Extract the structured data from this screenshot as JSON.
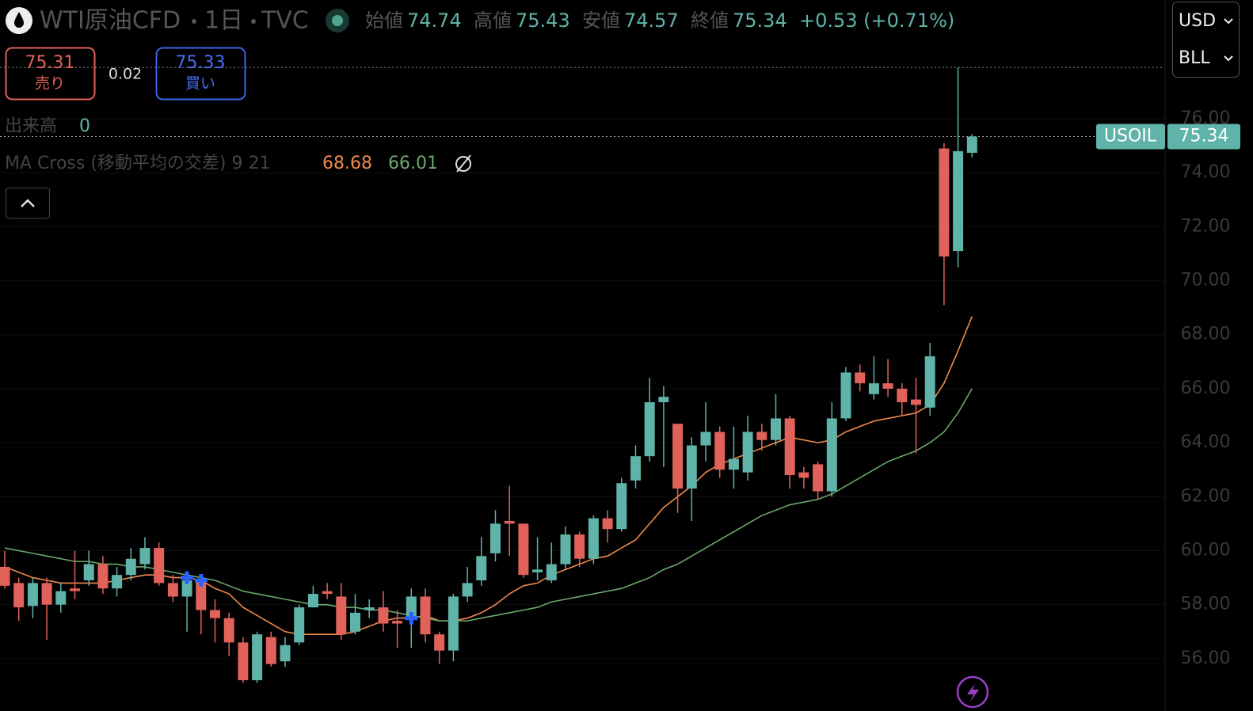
{
  "header": {
    "symbol": "WTI原油CFD",
    "interval": "1日",
    "source": "TVC",
    "open_label": "始値",
    "high_label": "高値",
    "low_label": "安値",
    "close_label": "終値",
    "change": "+0.53 (+0.71%)"
  },
  "trade": {
    "sell_price": 75.31,
    "sell_label": "売り",
    "spread": 0.02,
    "buy_price": 75.33,
    "buy_label": "買い"
  },
  "volume": {
    "label": "出来高",
    "value": 0
  },
  "indicator": {
    "label": "MA Cross (移動平均の交差) 9 21"
  },
  "selectors": {
    "currency": "USD",
    "unit": "BLL"
  },
  "symbol_tag": "USOIL",
  "chart_data": {
    "type": "candlestick",
    "categories": [
      null,
      null,
      null,
      null,
      null,
      null,
      null,
      null,
      null,
      null,
      null,
      null,
      null,
      null,
      null,
      null,
      null,
      null,
      null,
      null,
      null,
      null,
      null,
      null,
      null,
      null,
      null,
      null,
      null,
      null,
      null,
      null,
      null,
      null,
      null,
      null,
      null,
      null,
      null,
      null,
      null,
      null,
      null,
      null,
      null,
      null,
      null,
      null,
      null,
      null,
      null,
      null,
      null,
      null,
      null,
      null,
      null,
      null,
      null,
      null,
      null,
      null,
      null,
      null,
      null,
      null,
      null,
      null,
      null,
      null
    ],
    "open": [
      59.4,
      58.8,
      57.95,
      58.8,
      58.0,
      58.6,
      58.9,
      59.5,
      58.6,
      59.1,
      59.5,
      60.1,
      58.8,
      58.3,
      58.9,
      57.8,
      57.5,
      56.6,
      55.2,
      56.8,
      55.9,
      56.6,
      57.9,
      58.5,
      58.3,
      57.0,
      57.8,
      57.9,
      57.4,
      57.5,
      58.3,
      56.9,
      56.3,
      58.3,
      58.9,
      59.9,
      61.1,
      61.0,
      59.2,
      58.9,
      59.5,
      60.6,
      59.7,
      61.2,
      60.8,
      62.6,
      63.5,
      65.5,
      64.7,
      62.3,
      63.9,
      64.4,
      63.0,
      62.9,
      64.4,
      64.1,
      64.9,
      62.9,
      63.2,
      62.2,
      64.9,
      66.6,
      65.8,
      66.2,
      66.0,
      65.6,
      65.3,
      74.9,
      71.1,
      74.74
    ],
    "high": [
      60.0,
      59.0,
      59.0,
      59.0,
      58.8,
      60.0,
      60.0,
      59.8,
      59.4,
      60.1,
      60.5,
      60.3,
      59.1,
      59.2,
      59.1,
      58.2,
      57.7,
      56.8,
      57.0,
      57.0,
      56.8,
      58.0,
      58.7,
      58.8,
      58.8,
      58.4,
      58.2,
      58.5,
      57.8,
      58.6,
      58.6,
      57.0,
      58.4,
      59.4,
      60.5,
      61.5,
      62.4,
      61.0,
      60.5,
      60.3,
      60.9,
      60.7,
      61.3,
      61.5,
      62.7,
      63.9,
      66.4,
      66.1,
      64.7,
      64.2,
      65.5,
      64.6,
      64.6,
      65.0,
      64.7,
      65.8,
      65.0,
      63.1,
      63.3,
      65.5,
      66.8,
      66.9,
      67.2,
      67.1,
      66.2,
      66.4,
      67.7,
      75.1,
      77.9,
      75.43
    ],
    "low": [
      58.6,
      57.4,
      57.5,
      56.7,
      57.7,
      58.2,
      58.7,
      58.4,
      58.3,
      58.9,
      59.3,
      58.7,
      58.1,
      57.0,
      56.9,
      56.6,
      56.1,
      55.1,
      55.1,
      55.7,
      55.7,
      56.5,
      57.9,
      58.2,
      56.7,
      56.9,
      57.5,
      57.0,
      56.4,
      56.4,
      56.6,
      55.8,
      55.9,
      58.1,
      58.7,
      59.6,
      59.8,
      59.0,
      58.9,
      58.8,
      59.3,
      59.4,
      59.5,
      60.3,
      60.7,
      62.3,
      63.3,
      63.1,
      61.4,
      61.1,
      63.3,
      62.7,
      62.3,
      62.6,
      63.7,
      63.9,
      62.3,
      62.3,
      61.9,
      62.0,
      64.8,
      65.9,
      65.6,
      65.7,
      65.0,
      63.6,
      65.0,
      69.1,
      70.5,
      74.57
    ],
    "close": [
      58.7,
      57.9,
      58.8,
      58.0,
      58.5,
      58.5,
      59.5,
      58.6,
      59.1,
      59.7,
      60.1,
      58.8,
      58.3,
      58.9,
      57.8,
      57.5,
      56.6,
      55.2,
      56.9,
      55.8,
      56.5,
      57.9,
      58.4,
      58.4,
      56.9,
      57.7,
      57.9,
      57.3,
      57.3,
      58.3,
      56.9,
      56.3,
      58.3,
      58.8,
      59.8,
      61.0,
      61.0,
      59.1,
      59.3,
      59.5,
      60.6,
      59.7,
      61.2,
      60.8,
      62.5,
      63.5,
      65.5,
      65.7,
      62.3,
      63.9,
      64.4,
      63.0,
      63.4,
      64.4,
      64.1,
      64.9,
      62.8,
      62.7,
      62.2,
      64.9,
      66.6,
      66.2,
      66.2,
      66.0,
      65.5,
      65.4,
      67.2,
      70.9,
      74.8,
      75.34
    ],
    "up_color": "#5fb3a8",
    "down_color": "#e0625a",
    "series": [
      {
        "color": "#f08a4b",
        "values": [
          59.4,
          59.2,
          59.0,
          58.9,
          58.8,
          58.8,
          58.8,
          58.8,
          58.9,
          59.0,
          59.1,
          59.1,
          59.0,
          59.0,
          58.9,
          58.6,
          58.4,
          57.9,
          57.6,
          57.3,
          57.0,
          56.9,
          56.9,
          56.9,
          56.9,
          57.0,
          57.2,
          57.4,
          57.5,
          57.5,
          57.6,
          57.4,
          57.4,
          57.5,
          57.7,
          58.0,
          58.4,
          58.7,
          58.8,
          59.1,
          59.3,
          59.5,
          59.7,
          59.8,
          60.1,
          60.4,
          61.0,
          61.6,
          62.0,
          62.4,
          62.9,
          63.2,
          63.4,
          63.6,
          63.8,
          64.0,
          64.2,
          64.1,
          64.0,
          64.1,
          64.4,
          64.6,
          64.8,
          64.9,
          65.0,
          65.1,
          65.4,
          66.2,
          67.4,
          68.68
        ]
      },
      {
        "color": "#6da86a",
        "values": [
          60.1,
          60.0,
          59.9,
          59.8,
          59.7,
          59.6,
          59.6,
          59.5,
          59.5,
          59.4,
          59.4,
          59.3,
          59.2,
          59.1,
          59.0,
          58.9,
          58.7,
          58.5,
          58.4,
          58.3,
          58.2,
          58.1,
          58.0,
          58.0,
          57.9,
          57.9,
          57.8,
          57.8,
          57.7,
          57.6,
          57.5,
          57.4,
          57.4,
          57.4,
          57.5,
          57.6,
          57.7,
          57.8,
          57.9,
          58.1,
          58.2,
          58.3,
          58.4,
          58.5,
          58.6,
          58.8,
          59.0,
          59.3,
          59.5,
          59.8,
          60.1,
          60.4,
          60.7,
          61.0,
          61.3,
          61.5,
          61.7,
          61.8,
          61.9,
          62.1,
          62.4,
          62.7,
          63.0,
          63.3,
          63.5,
          63.7,
          64.0,
          64.4,
          65.1,
          66.01
        ]
      }
    ],
    "cross_color": "#2962ff",
    "ylim": [
      54.06,
      80.4
    ],
    "yticks": [
      {
        "value": 56,
        "label": "56.00"
      },
      {
        "value": 58,
        "label": "58.00"
      },
      {
        "value": 60,
        "label": "60.00"
      },
      {
        "value": 62,
        "label": "62.00"
      },
      {
        "value": 64,
        "label": "64.00"
      },
      {
        "value": 66,
        "label": "66.00"
      },
      {
        "value": 68,
        "label": "68.00"
      },
      {
        "value": 70,
        "label": "70.00"
      },
      {
        "value": 72,
        "label": "72.00"
      },
      {
        "value": 74,
        "label": "74.00"
      },
      {
        "value": 76,
        "label": "76.00"
      }
    ],
    "grid": true
  }
}
